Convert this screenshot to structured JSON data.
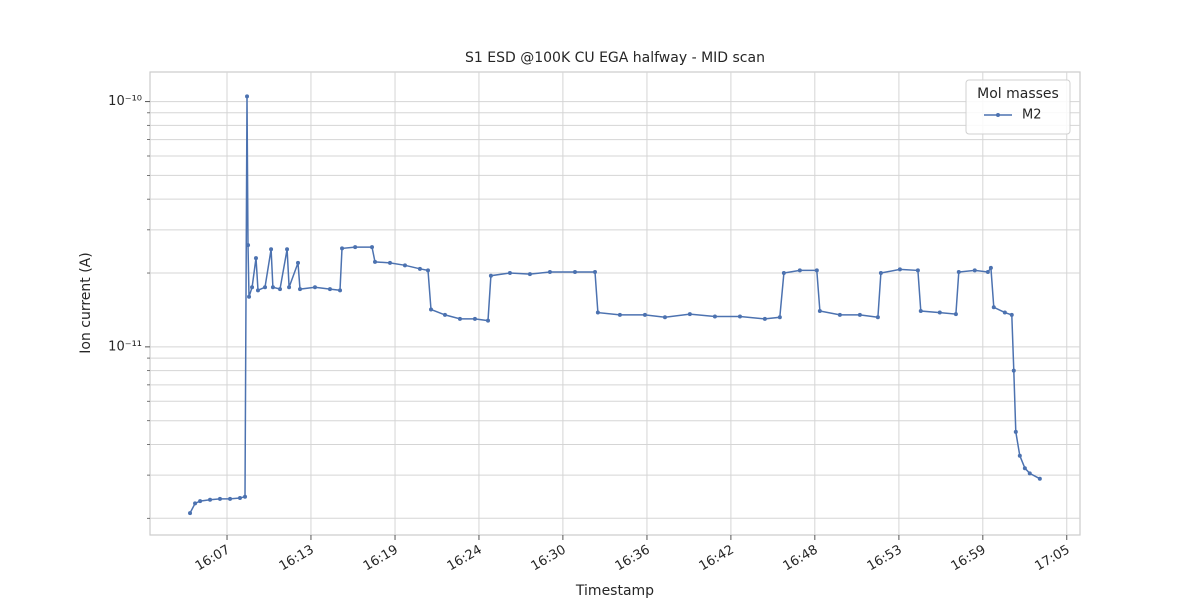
{
  "chart_data": {
    "type": "line",
    "title": "S1 ESD @100K CU EGA halfway - MID scan",
    "x_label": "Timestamp",
    "y_label": "Ion current (A)",
    "yscale": "log",
    "grid": true,
    "legend": "upper right",
    "legend_title": "Mol masses",
    "xlim": [
      961.9,
      1026.5
    ],
    "ylim": [
      1.71e-12,
      1.32e-10
    ],
    "xticks": [
      {
        "value": 967.25,
        "label": "16:07"
      },
      {
        "value": 973.08,
        "label": "16:13"
      },
      {
        "value": 978.92,
        "label": "16:19"
      },
      {
        "value": 984.75,
        "label": "16:24"
      },
      {
        "value": 990.58,
        "label": "16:30"
      },
      {
        "value": 996.42,
        "label": "16:36"
      },
      {
        "value": 1002.25,
        "label": "16:42"
      },
      {
        "value": 1008.08,
        "label": "16:48"
      },
      {
        "value": 1013.92,
        "label": "16:53"
      },
      {
        "value": 1019.75,
        "label": "16:59"
      },
      {
        "value": 1025.58,
        "label": "17:05"
      }
    ],
    "yticks": [
      {
        "value": 1e-11,
        "label": "10⁻¹¹"
      },
      {
        "value": 1e-10,
        "label": "10⁻¹⁰"
      }
    ],
    "yminorticks": [
      2e-12,
      3e-12,
      4e-12,
      5e-12,
      6e-12,
      7e-12,
      8e-12,
      9e-12,
      2e-11,
      3e-11,
      4e-11,
      5e-11,
      6e-11,
      7e-11,
      8e-11,
      9e-11
    ],
    "x": [
      964.68,
      965.03,
      965.38,
      966.07,
      966.76,
      967.46,
      968.15,
      968.5,
      968.64,
      968.71,
      968.78,
      968.99,
      969.26,
      969.4,
      969.89,
      970.31,
      970.44,
      970.93,
      971.42,
      971.56,
      972.18,
      972.32,
      973.36,
      974.4,
      975.1,
      975.24,
      976.15,
      977.32,
      977.53,
      978.57,
      979.61,
      980.65,
      981.21,
      981.42,
      982.39,
      983.43,
      984.47,
      985.38,
      985.58,
      986.9,
      988.29,
      989.68,
      991.42,
      992.81,
      993.01,
      994.54,
      996.28,
      997.67,
      999.4,
      1001.14,
      1002.88,
      1004.61,
      1005.65,
      1005.93,
      1007.04,
      1008.22,
      1008.43,
      1009.82,
      1011.21,
      1012.46,
      1012.67,
      1013.99,
      1015.24,
      1015.44,
      1016.76,
      1017.88,
      1018.08,
      1019.19,
      1020.1,
      1020.31,
      1020.51,
      1021.28,
      1021.76,
      1021.9,
      1022.04,
      1022.32,
      1022.67,
      1023.01,
      1023.71
    ],
    "series": [
      {
        "name": "M2",
        "color": "#4c72b0",
        "values": [
          2.1e-12,
          2.3e-12,
          2.35e-12,
          2.38e-12,
          2.4e-12,
          2.4e-12,
          2.42e-12,
          2.45e-12,
          1.05e-10,
          2.6e-11,
          1.6e-11,
          1.75e-11,
          2.3e-11,
          1.7e-11,
          1.75e-11,
          2.5e-11,
          1.75e-11,
          1.72e-11,
          2.5e-11,
          1.75e-11,
          2.2e-11,
          1.72e-11,
          1.75e-11,
          1.72e-11,
          1.7e-11,
          2.52e-11,
          2.55e-11,
          2.55e-11,
          2.22e-11,
          2.2e-11,
          2.15e-11,
          2.08e-11,
          2.05e-11,
          1.42e-11,
          1.35e-11,
          1.3e-11,
          1.3e-11,
          1.28e-11,
          1.95e-11,
          2e-11,
          1.98e-11,
          2.02e-11,
          2.02e-11,
          2.02e-11,
          1.38e-11,
          1.35e-11,
          1.35e-11,
          1.32e-11,
          1.36e-11,
          1.33e-11,
          1.33e-11,
          1.3e-11,
          1.32e-11,
          2e-11,
          2.05e-11,
          2.05e-11,
          1.4e-11,
          1.35e-11,
          1.35e-11,
          1.32e-11,
          2e-11,
          2.07e-11,
          2.05e-11,
          1.4e-11,
          1.38e-11,
          1.36e-11,
          2.02e-11,
          2.05e-11,
          2.02e-11,
          2.1e-11,
          1.45e-11,
          1.38e-11,
          1.35e-11,
          8e-12,
          4.5e-12,
          3.6e-12,
          3.2e-12,
          3.05e-12,
          2.9e-12
        ]
      }
    ]
  }
}
